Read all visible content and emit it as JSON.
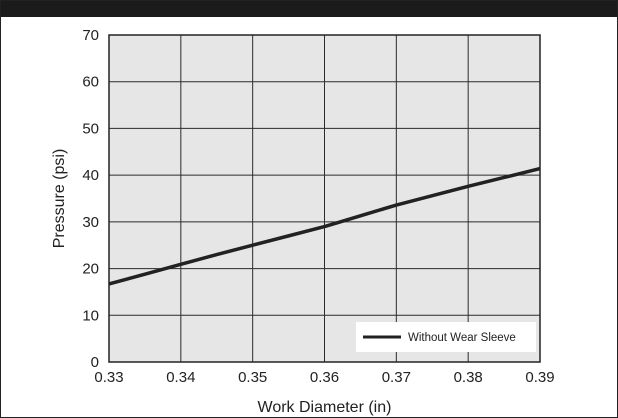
{
  "chart_data": {
    "type": "line",
    "title": "",
    "xlabel": "Work Diameter (in)",
    "ylabel": "Pressure (psi)",
    "xlim": [
      0.33,
      0.39
    ],
    "ylim": [
      0,
      70
    ],
    "xticks": [
      "0.33",
      "0.34",
      "0.35",
      "0.36",
      "0.37",
      "0.38",
      "0.39"
    ],
    "yticks": [
      "0",
      "10",
      "20",
      "30",
      "40",
      "50",
      "60",
      "70"
    ],
    "grid": true,
    "legend_position": "bottom-right",
    "series": [
      {
        "name": "Without Wear Sleeve",
        "color": "#222222",
        "x": [
          0.33,
          0.335,
          0.34,
          0.345,
          0.35,
          0.355,
          0.36,
          0.362,
          0.365,
          0.37,
          0.375,
          0.38,
          0.385,
          0.39
        ],
        "y": [
          16.7,
          18.8,
          20.9,
          23.0,
          25.0,
          27.0,
          29.0,
          29.9,
          31.3,
          33.6,
          35.6,
          37.6,
          39.5,
          41.4
        ]
      }
    ]
  }
}
